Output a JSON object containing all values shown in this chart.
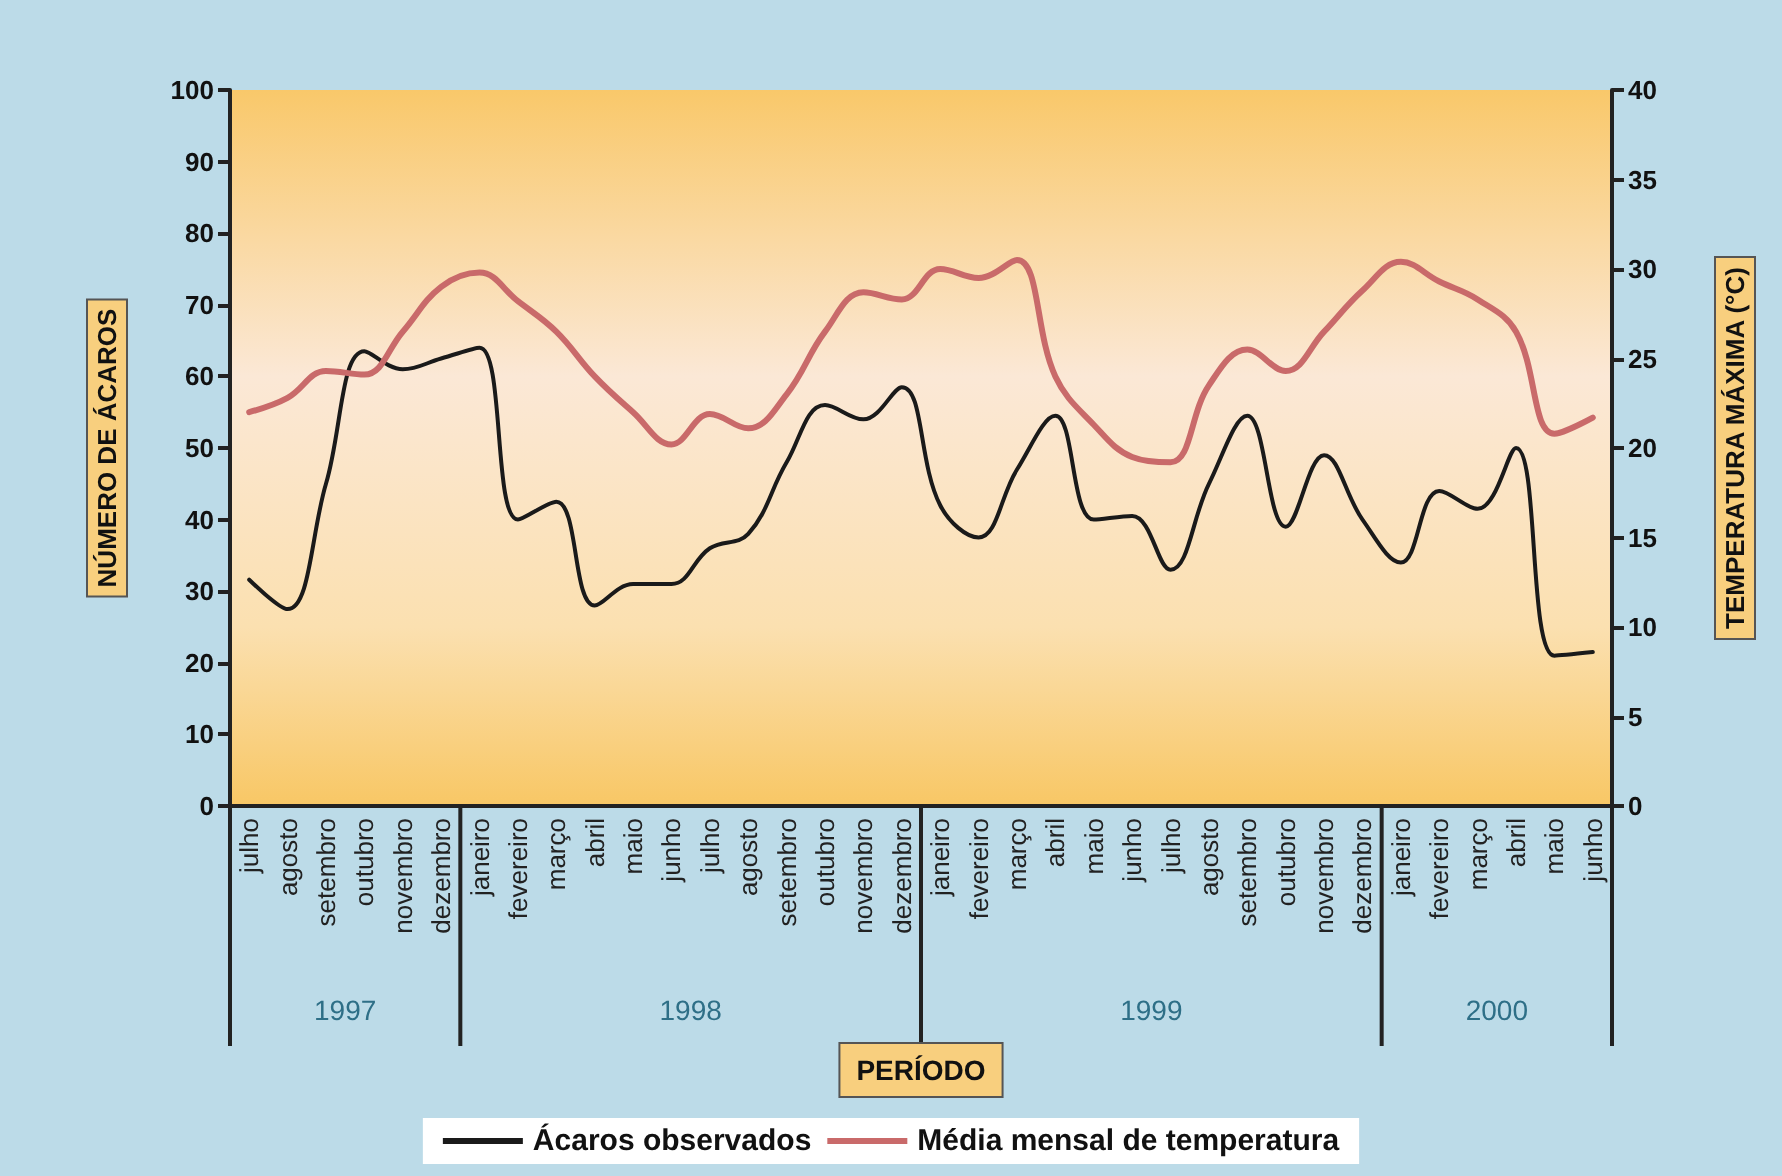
{
  "chart_data": {
    "type": "line",
    "xlabel": "PERÍODO",
    "ylabel": "NÚMERO DE ÁCAROS",
    "y2label": "TEMPERATURA MÁXIMA (°C)",
    "categories": [
      "julho",
      "agosto",
      "setembro",
      "outubro",
      "novembro",
      "dezembro",
      "janeiro",
      "fevereiro",
      "março",
      "abril",
      "maio",
      "junho",
      "julho",
      "agosto",
      "setembro",
      "outubro",
      "novembro",
      "dezembro",
      "janeiro",
      "fevereiro",
      "março",
      "abril",
      "maio",
      "junho",
      "julho",
      "agosto",
      "setembro",
      "outubro",
      "novembro",
      "dezembro",
      "janeiro",
      "fevereiro",
      "março",
      "abril",
      "maio",
      "junho"
    ],
    "series": [
      {
        "name": "Ácaros observados",
        "color": "#1a1a1a",
        "values": [
          31.6,
          27.5,
          45,
          63.5,
          61,
          62.5,
          64,
          40,
          42.5,
          28,
          31,
          31,
          36,
          38,
          48,
          56,
          54,
          58.5,
          42,
          37.5,
          47,
          54.5,
          40,
          40.5,
          33,
          45,
          54.5,
          39,
          49,
          40,
          34,
          44,
          41.5,
          50,
          21,
          21.5
        ]
      },
      {
        "name": "Média mensal de temperatura",
        "color": "#c96a6a",
        "axis": "y2",
        "values": [
          22,
          22.8,
          24.3,
          24.1,
          26.5,
          29,
          29.8,
          28.2,
          26.5,
          24,
          22,
          20.2,
          21.9,
          21.1,
          23,
          26.5,
          28.7,
          28.3,
          30,
          29.5,
          30.5,
          24,
          21.3,
          19.5,
          19.2,
          23.5,
          25.5,
          24.3,
          26.5,
          28.8,
          30.4,
          29.3,
          28.3,
          26.5,
          20.8,
          21.7
        ]
      }
    ],
    "ylim": [
      0,
      100
    ],
    "yticks": [
      0,
      10,
      20,
      30,
      40,
      50,
      60,
      70,
      80,
      90,
      100
    ],
    "y2lim": [
      0,
      40
    ],
    "y2ticks": [
      0,
      5,
      10,
      15,
      20,
      25,
      30,
      35,
      40
    ],
    "annotations": [
      "1997",
      "1998",
      "1999",
      "2000"
    ],
    "marker": "none",
    "line_style": "solid",
    "grid": false,
    "legend": "bottom"
  }
}
